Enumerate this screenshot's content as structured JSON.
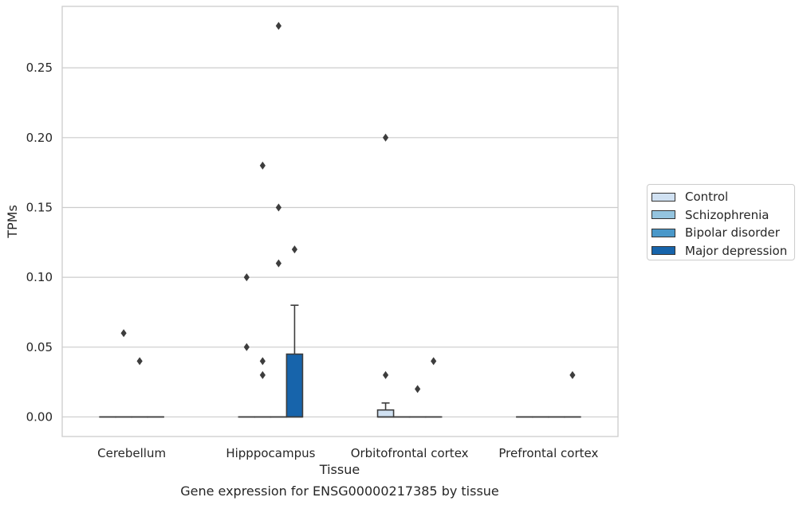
{
  "chart_data": {
    "type": "box",
    "title": "",
    "xlabel": "Tissue",
    "ylabel": "TPMs",
    "caption": "Gene expression for ENSG00000217385 by tissue",
    "categories": [
      "Cerebellum",
      "Hipppocampus",
      "Orbitofrontal cortex",
      "Prefrontal cortex"
    ],
    "ylim": [
      -0.014,
      0.294
    ],
    "yticks": [
      "0.00",
      "0.05",
      "0.10",
      "0.15",
      "0.20",
      "0.25"
    ],
    "grid": true,
    "legend_position": "right",
    "series": [
      {
        "name": "Control",
        "color": "#d0e1f2",
        "boxes": [
          {
            "q1": 0,
            "median": 0,
            "q3": 0,
            "whisker_low": 0,
            "whisker_high": 0,
            "outliers": []
          },
          {
            "q1": 0,
            "median": 0,
            "q3": 0,
            "whisker_low": 0,
            "whisker_high": 0,
            "outliers": [
              0.05,
              0.1
            ]
          },
          {
            "q1": 0,
            "median": 0,
            "q3": 0.005,
            "whisker_low": 0,
            "whisker_high": 0.01,
            "outliers": [
              0.03,
              0.2
            ]
          },
          {
            "q1": 0,
            "median": 0,
            "q3": 0,
            "whisker_low": 0,
            "whisker_high": 0,
            "outliers": []
          }
        ]
      },
      {
        "name": "Schizophrenia",
        "color": "#94c4df",
        "boxes": [
          {
            "q1": 0,
            "median": 0,
            "q3": 0,
            "whisker_low": 0,
            "whisker_high": 0,
            "outliers": [
              0.06
            ]
          },
          {
            "q1": 0,
            "median": 0,
            "q3": 0,
            "whisker_low": 0,
            "whisker_high": 0,
            "outliers": [
              0.03,
              0.04,
              0.18
            ]
          },
          {
            "q1": 0,
            "median": 0,
            "q3": 0,
            "whisker_low": 0,
            "whisker_high": 0,
            "outliers": []
          },
          {
            "q1": 0,
            "median": 0,
            "q3": 0,
            "whisker_low": 0,
            "whisker_high": 0,
            "outliers": []
          }
        ]
      },
      {
        "name": "Bipolar disorder",
        "color": "#4a98c9",
        "boxes": [
          {
            "q1": 0,
            "median": 0,
            "q3": 0,
            "whisker_low": 0,
            "whisker_high": 0,
            "outliers": [
              0.04
            ]
          },
          {
            "q1": 0,
            "median": 0,
            "q3": 0,
            "whisker_low": 0,
            "whisker_high": 0,
            "outliers": [
              0.11,
              0.15,
              0.28
            ]
          },
          {
            "q1": 0,
            "median": 0,
            "q3": 0,
            "whisker_low": 0,
            "whisker_high": 0,
            "outliers": [
              0.02
            ]
          },
          {
            "q1": 0,
            "median": 0,
            "q3": 0,
            "whisker_low": 0,
            "whisker_high": 0,
            "outliers": []
          }
        ]
      },
      {
        "name": "Major depression",
        "color": "#1764ab",
        "boxes": [
          {
            "q1": 0,
            "median": 0,
            "q3": 0,
            "whisker_low": 0,
            "whisker_high": 0,
            "outliers": []
          },
          {
            "q1": 0,
            "median": 0,
            "q3": 0.045,
            "whisker_low": 0,
            "whisker_high": 0.08,
            "outliers": [
              0.12
            ]
          },
          {
            "q1": 0,
            "median": 0,
            "q3": 0,
            "whisker_low": 0,
            "whisker_high": 0,
            "outliers": [
              0.04
            ]
          },
          {
            "q1": 0,
            "median": 0,
            "q3": 0,
            "whisker_low": 0,
            "whisker_high": 0,
            "outliers": [
              0.03
            ]
          }
        ]
      }
    ]
  }
}
